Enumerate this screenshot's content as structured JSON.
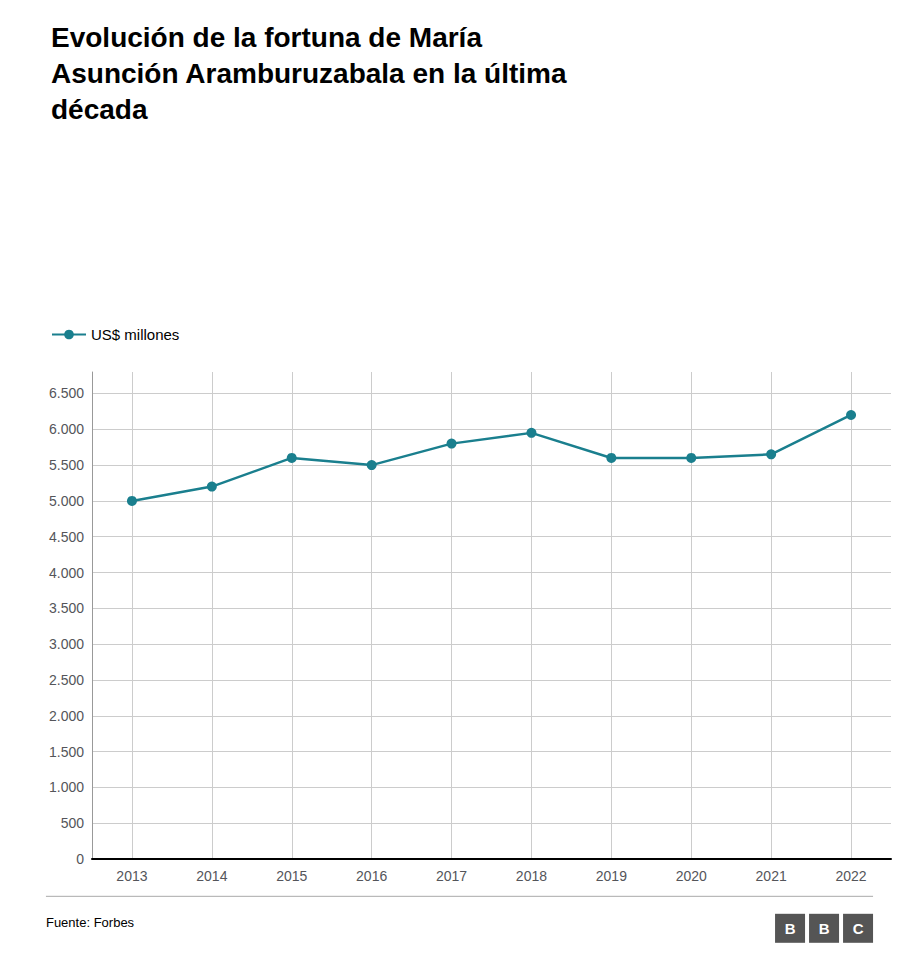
{
  "chart_data": {
    "type": "line",
    "title": "Evolución de la fortuna de María\nAsunción Aramburuzabala en la última\ndécada",
    "source": "Fuente: Forbes",
    "logo": "BBC",
    "x": [
      2013,
      2014,
      2015,
      2016,
      2017,
      2018,
      2019,
      2020,
      2021,
      2022
    ],
    "series": [
      {
        "name": "US$ millones",
        "color": "#1a7f8e",
        "marker": "circle",
        "values": [
          5000,
          5200,
          5600,
          5500,
          5800,
          5950,
          5600,
          5600,
          5650,
          6200
        ]
      }
    ],
    "xlim": [
      2012.5,
      2022.5
    ],
    "xticks": [
      2013,
      2014,
      2015,
      2016,
      2017,
      2018,
      2019,
      2020,
      2021,
      2022
    ],
    "ylim": [
      0,
      6800
    ],
    "yticks": [
      0,
      500,
      {
        "value": 1000,
        "label": "1.000"
      },
      {
        "value": 1500,
        "label": "1.500"
      },
      {
        "value": 2000,
        "label": "2.000"
      },
      {
        "value": 2500,
        "label": "2.500"
      },
      {
        "value": 3000,
        "label": "3.000"
      },
      {
        "value": 3500,
        "label": "3.500"
      },
      {
        "value": 4000,
        "label": "4.000"
      },
      {
        "value": 4500,
        "label": "4.500"
      },
      {
        "value": 5000,
        "label": "5.000"
      },
      {
        "value": 5500,
        "label": "5.500"
      },
      {
        "value": 6000,
        "label": "6.000"
      },
      {
        "value": 6500,
        "label": "6.500"
      }
    ],
    "grid": true,
    "legend": "upper left"
  }
}
